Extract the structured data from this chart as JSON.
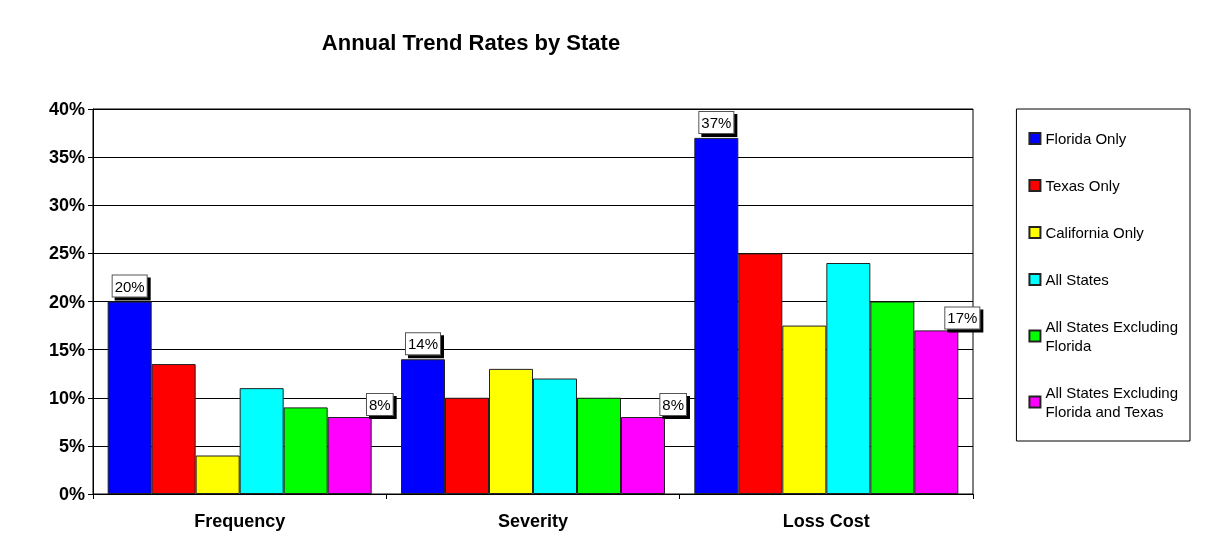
{
  "chart_data": {
    "type": "bar",
    "title": "Annual Trend Rates by State",
    "categories": [
      "Frequency",
      "Severity",
      "Loss Cost"
    ],
    "series": [
      {
        "name": "Florida Only",
        "color": "#0000ff",
        "values": [
          20,
          14,
          37
        ],
        "value_labels": [
          "20%",
          "14%",
          "37%"
        ]
      },
      {
        "name": "Texas Only",
        "color": "#ff0000",
        "values": [
          13.5,
          10,
          25
        ]
      },
      {
        "name": "California Only",
        "color": "#ffff00",
        "values": [
          4,
          13,
          17.5
        ]
      },
      {
        "name": "All States",
        "color": "#00ffff",
        "values": [
          11,
          12,
          24
        ]
      },
      {
        "name": "All States Excluding Florida",
        "color": "#00ff00",
        "values": [
          9,
          10,
          20
        ]
      },
      {
        "name": "All States Excluding Florida and Texas",
        "color": "#ff00ff",
        "values": [
          8,
          8,
          17
        ],
        "value_labels": [
          "8%",
          "8%",
          "17%"
        ]
      }
    ],
    "ylim": [
      0,
      40
    ],
    "yticks": [
      {
        "value": 0,
        "label": "0%"
      },
      {
        "value": 5,
        "label": "5%"
      },
      {
        "value": 10,
        "label": "10%"
      },
      {
        "value": 15,
        "label": "15%"
      },
      {
        "value": 20,
        "label": "20%"
      },
      {
        "value": 25,
        "label": "25%"
      },
      {
        "value": 30,
        "label": "30%"
      },
      {
        "value": 35,
        "label": "35%"
      },
      {
        "value": 40,
        "label": "40%"
      }
    ],
    "grid": "y",
    "legend": "right"
  }
}
